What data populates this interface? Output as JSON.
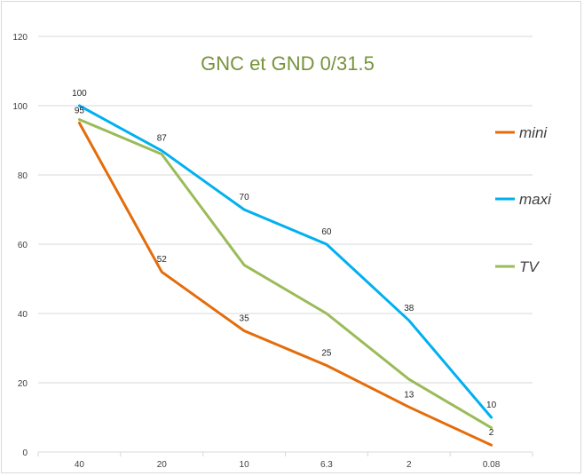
{
  "chart_data": {
    "type": "line",
    "title": "GNC et GND 0/31.5",
    "title_color": "#77933c",
    "categories": [
      "40",
      "20",
      "10",
      "6.3",
      "2",
      "0.08"
    ],
    "ylim": [
      0,
      120
    ],
    "yticks": [
      0,
      20,
      40,
      60,
      80,
      100,
      120
    ],
    "grid": true,
    "legend_position": "right",
    "series": [
      {
        "name": "mini",
        "color": "#e46c0a",
        "values": [
          95,
          52,
          35,
          25,
          13,
          2
        ],
        "show_labels": true
      },
      {
        "name": "maxi",
        "color": "#00b0f0",
        "values": [
          100,
          87,
          70,
          60,
          38,
          10
        ],
        "show_labels": true
      },
      {
        "name": "TV",
        "color": "#9bbb59",
        "values": [
          96,
          86,
          54,
          40,
          21,
          7
        ],
        "show_labels": false
      }
    ]
  }
}
